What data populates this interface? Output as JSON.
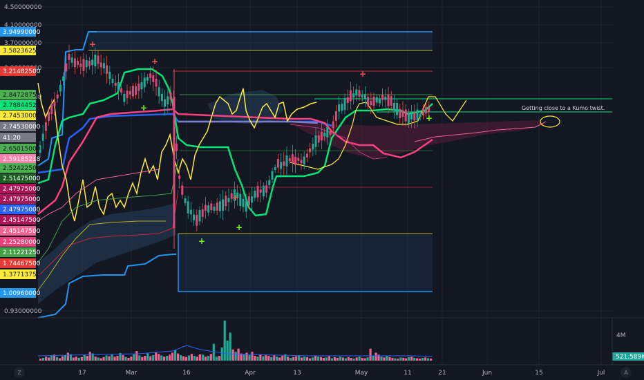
{
  "chart_data": {
    "type": "line",
    "y_axis": {
      "ticks": [
        "4.50000000",
        "4.10000000",
        "3.70000000",
        "3.30000000",
        "2.90000000",
        "0.93000000"
      ],
      "scale": "log",
      "side": "left",
      "grid": true
    },
    "price_labels": [
      {
        "text": "3.94990000",
        "color": "#2196f3"
      },
      {
        "text": "3.58236250",
        "color": "#ffeb3b"
      },
      {
        "text": "3.21482500",
        "color": "#e53935"
      },
      {
        "text": "2.84728750",
        "color": "#4caf50"
      },
      {
        "text": "2.78844525",
        "color": "#00e676"
      },
      {
        "text": "2.74530000",
        "color": "#ffeb3b"
      },
      {
        "text": "2.74530000",
        "color": "#787b86"
      },
      {
        "text": "41:20",
        "color": "#787b86"
      },
      {
        "text": "2.65015000",
        "color": "#4caf50"
      },
      {
        "text": "2.59185218",
        "color": "#ff80ab"
      },
      {
        "text": "2.52422500",
        "color": "#4caf50"
      },
      {
        "text": "2.51475000",
        "color": "#1b5e20"
      },
      {
        "text": "2.47975000",
        "color": "#ad1457"
      },
      {
        "text": "2.47975000",
        "color": "#ad1457"
      },
      {
        "text": "2.47975000",
        "color": "#2962ff"
      },
      {
        "text": "2.45147500",
        "color": "#ad1457"
      },
      {
        "text": "2.45147500",
        "color": "#f06292"
      },
      {
        "text": "2.25280000",
        "color": "#ec407a"
      },
      {
        "text": "2.11221250",
        "color": "#43a047"
      },
      {
        "text": "1.74467500",
        "color": "#e53935"
      },
      {
        "text": "1.37713750",
        "color": "#ffeb3b"
      },
      {
        "text": "1.00960000",
        "color": "#2196f3"
      }
    ],
    "x_axis": {
      "ticks": [
        "17",
        "Mar",
        "16",
        "Apr",
        "13",
        "May",
        "11",
        "21",
        "Jun",
        "15",
        "Jul"
      ]
    },
    "annotation": "Getting close to a Kumo twist.",
    "volume": {
      "axis_label": "4M",
      "last_label": "521.589K",
      "values": [
        0.05,
        0.07,
        0.1,
        0.08,
        0.12,
        0.15,
        0.09,
        0.06,
        0.11,
        0.13,
        0.2,
        0.16,
        0.08,
        0.1,
        0.07,
        0.09,
        0.14,
        0.12,
        0.22,
        0.18,
        0.1,
        0.08,
        0.06,
        0.09,
        0.13,
        0.11,
        0.15,
        0.1,
        0.12,
        0.19,
        0.14,
        0.09,
        0.07,
        0.1,
        0.16,
        0.24,
        0.13,
        0.09,
        0.12,
        0.18,
        0.11,
        0.14,
        0.21,
        0.17,
        0.13,
        0.1,
        0.12,
        0.15,
        0.2,
        0.26,
        0.18,
        0.14,
        0.11,
        0.09,
        0.13,
        0.17,
        0.12,
        0.1,
        0.16,
        0.15,
        0.1,
        0.12,
        0.17,
        0.42,
        0.1,
        0.12,
        0.33,
        1.0,
        0.5,
        0.7,
        0.28,
        0.22,
        0.3,
        0.18,
        0.15,
        0.2,
        0.14,
        0.22,
        0.12,
        0.1,
        0.16,
        0.11,
        0.14,
        0.12,
        0.09,
        0.13,
        0.1,
        0.08,
        0.12,
        0.16,
        0.1,
        0.07,
        0.09,
        0.11,
        0.13,
        0.08,
        0.1,
        0.09,
        0.06,
        0.08,
        0.12,
        0.1,
        0.09,
        0.07,
        0.08,
        0.11,
        0.06,
        0.09,
        0.07,
        0.1,
        0.08,
        0.06,
        0.09,
        0.07,
        0.05,
        0.08,
        0.1,
        0.07,
        0.06,
        0.08,
        0.3,
        0.12,
        0.2,
        0.15,
        0.1,
        0.08,
        0.12,
        0.09,
        0.07,
        0.06,
        0.05,
        0.08,
        0.07,
        0.06,
        0.09,
        0.1,
        0.07,
        0.06,
        0.05,
        0.07,
        0.08,
        0.06,
        0.05
      ],
      "colors_note": "green for up bars, pink for down bars"
    },
    "bottom_toolbar": [
      "Z",
      "A"
    ]
  }
}
